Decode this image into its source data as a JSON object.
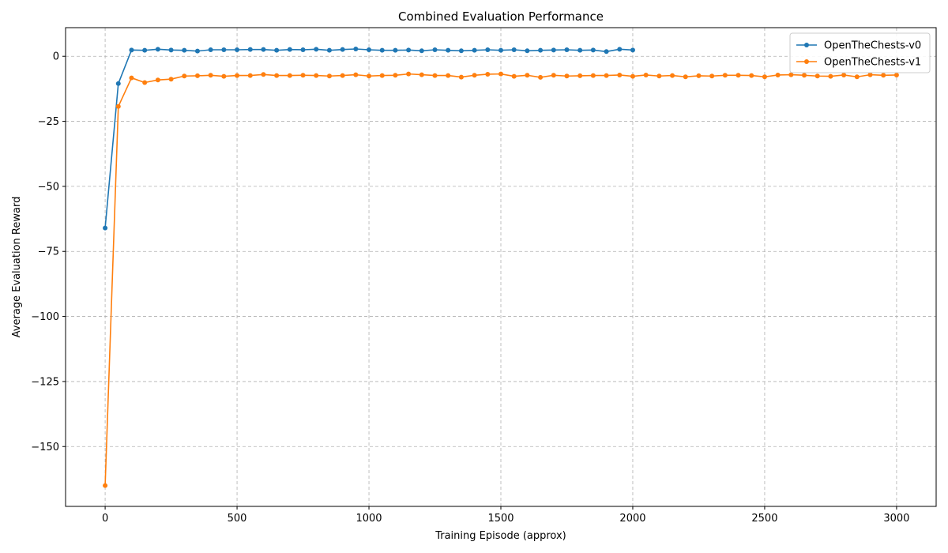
{
  "chart_data": {
    "type": "line",
    "title": "Combined Evaluation Performance",
    "xlabel": "Training Episode (approx)",
    "ylabel": "Average Evaluation Reward",
    "xlim": [
      -150,
      3150
    ],
    "ylim": [
      -173,
      11
    ],
    "xticks": [
      0,
      500,
      1000,
      1500,
      2000,
      2500,
      3000
    ],
    "xtick_labels": [
      "0",
      "500",
      "1000",
      "1500",
      "2000",
      "2500",
      "3000"
    ],
    "yticks": [
      0,
      -25,
      -50,
      -75,
      -100,
      -125,
      -150
    ],
    "ytick_labels": [
      "0",
      "−25",
      "−50",
      "−75",
      "−100",
      "−125",
      "−150"
    ],
    "grid": true,
    "legend_position": "top-right",
    "series": [
      {
        "name": "OpenTheChests-v0",
        "color": "#1f77b4",
        "x": [
          0,
          50,
          100,
          150,
          200,
          250,
          300,
          350,
          400,
          450,
          500,
          550,
          600,
          650,
          700,
          750,
          800,
          850,
          900,
          950,
          1000,
          1050,
          1100,
          1150,
          1200,
          1250,
          1300,
          1350,
          1400,
          1450,
          1500,
          1550,
          1600,
          1650,
          1700,
          1750,
          1800,
          1850,
          1900,
          1950,
          2000
        ],
        "y": [
          -66,
          -10.5,
          2.4,
          2.3,
          2.7,
          2.4,
          2.3,
          2.0,
          2.5,
          2.5,
          2.5,
          2.6,
          2.6,
          2.3,
          2.6,
          2.5,
          2.7,
          2.3,
          2.6,
          2.8,
          2.5,
          2.3,
          2.3,
          2.4,
          2.1,
          2.5,
          2.3,
          2.1,
          2.3,
          2.5,
          2.3,
          2.5,
          2.1,
          2.3,
          2.4,
          2.5,
          2.3,
          2.4,
          1.8,
          2.7,
          2.4
        ]
      },
      {
        "name": "OpenTheChests-v1",
        "color": "#ff7f0e",
        "x": [
          0,
          50,
          100,
          150,
          200,
          250,
          300,
          350,
          400,
          450,
          500,
          550,
          600,
          650,
          700,
          750,
          800,
          850,
          900,
          950,
          1000,
          1050,
          1100,
          1150,
          1200,
          1250,
          1300,
          1350,
          1400,
          1450,
          1500,
          1550,
          1600,
          1650,
          1700,
          1750,
          1800,
          1850,
          1900,
          1950,
          2000,
          2050,
          2100,
          2150,
          2200,
          2250,
          2300,
          2350,
          2400,
          2450,
          2500,
          2550,
          2600,
          2650,
          2700,
          2750,
          2800,
          2850,
          2900,
          2950,
          3000
        ],
        "y": [
          -165,
          -19.3,
          -8.3,
          -10.1,
          -9.1,
          -8.8,
          -7.6,
          -7.5,
          -7.3,
          -7.7,
          -7.4,
          -7.4,
          -7.0,
          -7.4,
          -7.4,
          -7.3,
          -7.4,
          -7.6,
          -7.4,
          -7.1,
          -7.6,
          -7.4,
          -7.3,
          -6.8,
          -7.1,
          -7.4,
          -7.4,
          -8.0,
          -7.3,
          -6.9,
          -6.8,
          -7.7,
          -7.3,
          -8.1,
          -7.3,
          -7.6,
          -7.5,
          -7.4,
          -7.4,
          -7.2,
          -7.7,
          -7.2,
          -7.6,
          -7.4,
          -7.9,
          -7.5,
          -7.6,
          -7.3,
          -7.3,
          -7.4,
          -7.9,
          -7.2,
          -7.1,
          -7.3,
          -7.6,
          -7.7,
          -7.2,
          -7.9,
          -7.1,
          -7.3,
          -7.2
        ]
      }
    ]
  }
}
